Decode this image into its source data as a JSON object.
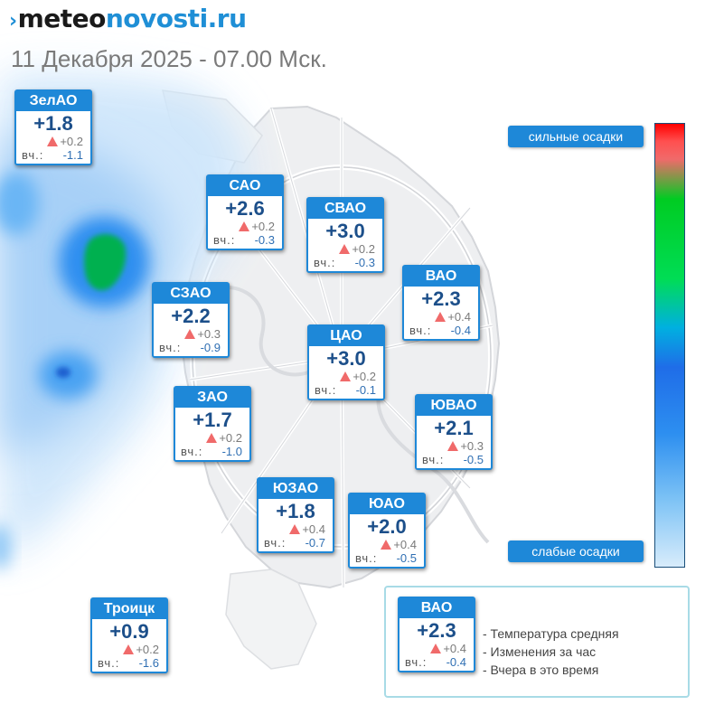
{
  "header": {
    "logo_part1": "meteo",
    "logo_part2": "novosti.ru",
    "subtitle": "11 Декабря 2025 - 07.00 Мск."
  },
  "yesterday_label": "вч.:",
  "districts": [
    {
      "name": "ЗелАО",
      "temp": "+1.8",
      "change": "+0.2",
      "yesterday": "-1.1"
    },
    {
      "name": "САО",
      "temp": "+2.6",
      "change": "+0.2",
      "yesterday": "-0.3"
    },
    {
      "name": "СВАО",
      "temp": "+3.0",
      "change": "+0.2",
      "yesterday": "-0.3"
    },
    {
      "name": "ВАО",
      "temp": "+2.3",
      "change": "+0.4",
      "yesterday": "-0.4"
    },
    {
      "name": "СЗАО",
      "temp": "+2.2",
      "change": "+0.3",
      "yesterday": "-0.9"
    },
    {
      "name": "ЦАО",
      "temp": "+3.0",
      "change": "+0.2",
      "yesterday": "-0.1"
    },
    {
      "name": "ЗАО",
      "temp": "+1.7",
      "change": "+0.2",
      "yesterday": "-1.0"
    },
    {
      "name": "ЮВАО",
      "temp": "+2.1",
      "change": "+0.3",
      "yesterday": "-0.5"
    },
    {
      "name": "ЮЗАО",
      "temp": "+1.8",
      "change": "+0.4",
      "yesterday": "-0.7"
    },
    {
      "name": "ЮАО",
      "temp": "+2.0",
      "change": "+0.4",
      "yesterday": "-0.5"
    },
    {
      "name": "Троицк",
      "temp": "+0.9",
      "change": "+0.2",
      "yesterday": "-1.6"
    }
  ],
  "scale": {
    "top_label": "сильные осадки",
    "bottom_label": "слабые осадки"
  },
  "legend": {
    "example": {
      "name": "ВАО",
      "temp": "+2.3",
      "change": "+0.4",
      "yesterday": "-0.4"
    },
    "line1": "- Температура средняя",
    "line2": "- Изменения за час",
    "line3": "- Вчера в это время"
  },
  "colors": {
    "brand_blue": "#1e88d8",
    "logo_dark": "#1a1a1a",
    "temp_text": "#1c4f8a",
    "rise_triangle": "#f06a6a",
    "precip_light": "#cfe6fb",
    "precip_medium": "#2d8ff0",
    "precip_heavy": "#00b050"
  }
}
